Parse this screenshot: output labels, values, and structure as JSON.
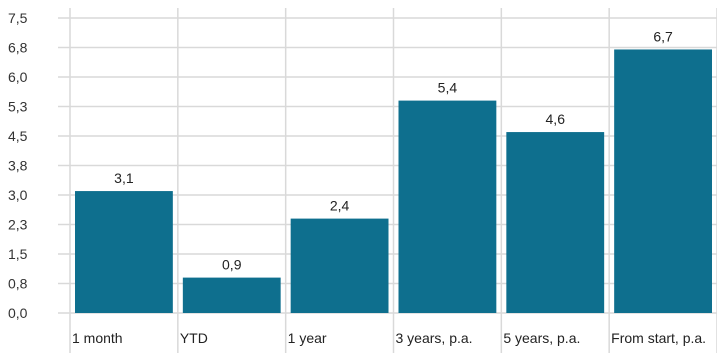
{
  "colors": {
    "bar": "#0e6f8e",
    "grid": "#d9d9d9",
    "background": "#ffffff"
  },
  "chart_data": {
    "type": "bar",
    "categories": [
      "1 month",
      "YTD",
      "1 year",
      "3 years, p.a.",
      "5 years, p.a.",
      "From start, p.a."
    ],
    "values": [
      3.1,
      0.9,
      2.4,
      5.4,
      4.6,
      6.7
    ],
    "value_labels": [
      "3,1",
      "0,9",
      "2,4",
      "5,4",
      "4,6",
      "6,7"
    ],
    "y_ticks": [
      0.0,
      0.75,
      1.5,
      2.25,
      3.0,
      3.75,
      4.5,
      5.25,
      6.0,
      6.75,
      7.5
    ],
    "y_tick_labels": [
      "0,0",
      "0,8",
      "1,5",
      "2,3",
      "3,0",
      "3,8",
      "4,5",
      "5,3",
      "6,0",
      "6,8",
      "7,5"
    ],
    "ylim": [
      0,
      7.5
    ],
    "grid": true,
    "legend": "none",
    "title": "",
    "xlabel": "",
    "ylabel": ""
  }
}
